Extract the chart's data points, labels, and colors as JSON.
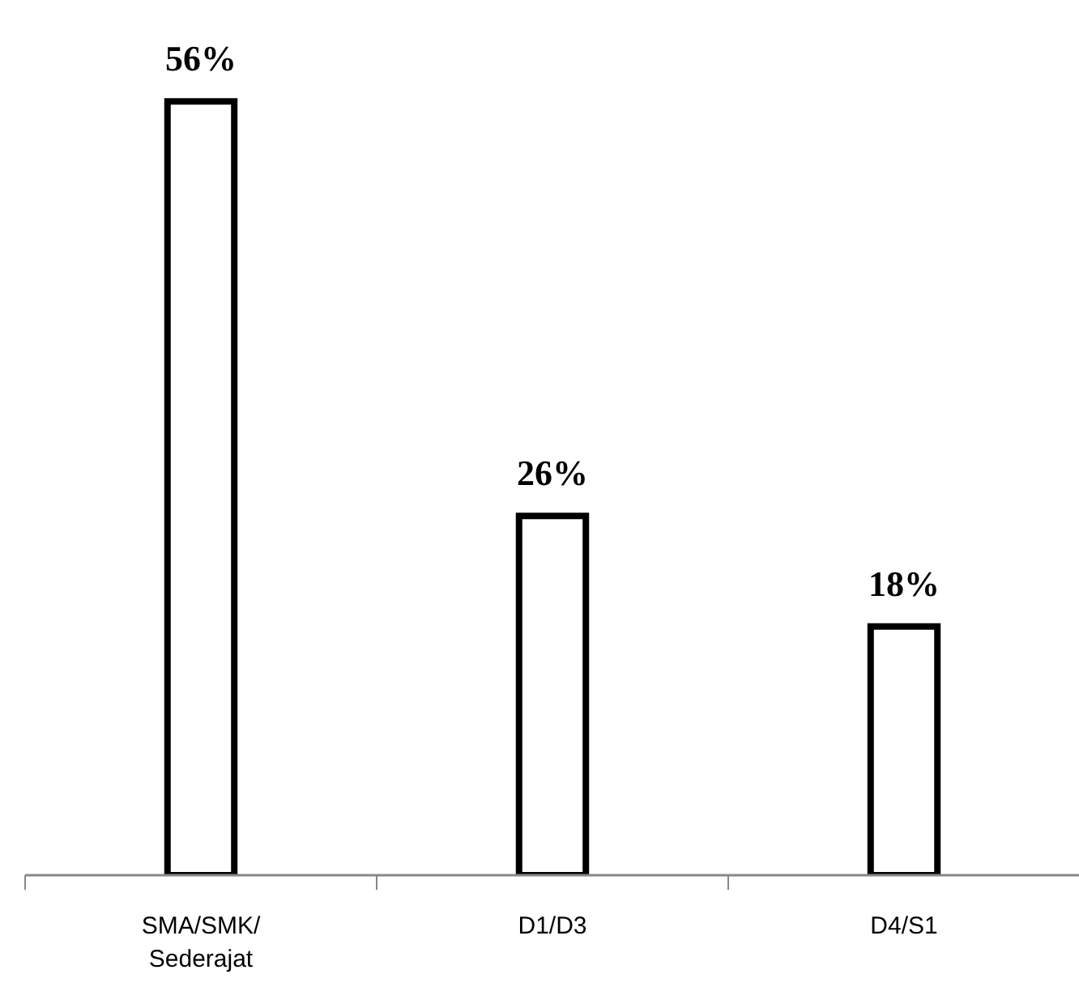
{
  "chart_data": {
    "type": "bar",
    "categories": [
      "SMA/SMK/\nSederajat",
      "D1/D3",
      "D4/S1"
    ],
    "values": [
      56,
      26,
      18
    ],
    "value_labels": [
      "56%",
      "26%",
      "18%"
    ],
    "color": "#ffffff"
  }
}
